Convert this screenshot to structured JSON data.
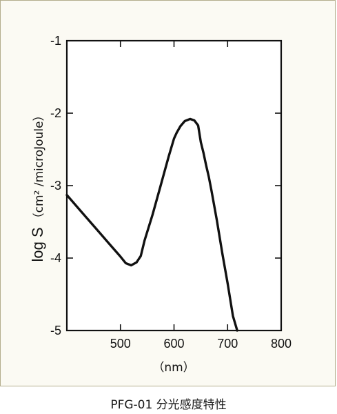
{
  "caption": "PFG-01 分光感度特性",
  "chart_data": {
    "type": "line",
    "title": "",
    "xlabel": "（nm）",
    "ylabel": "log S",
    "ylabel_unit": "（cm² /microJoule）",
    "xlim": [
      400,
      800
    ],
    "ylim": [
      -5,
      -1
    ],
    "xticks": [
      500,
      600,
      700,
      800
    ],
    "xtick_labels": [
      "500",
      "600",
      "700",
      "800"
    ],
    "yticks": [
      -1,
      -2,
      -3,
      -4,
      -5
    ],
    "ytick_labels": [
      "-1",
      "-2",
      "-3",
      "-4",
      "-5"
    ],
    "grid": false,
    "line_color": "#111111",
    "series": [
      {
        "x": [
          400,
          420,
          440,
          460,
          480,
          500,
          510,
          520,
          530,
          538,
          545,
          560,
          575,
          590,
          600,
          605,
          612,
          620,
          630,
          638,
          645,
          650,
          655,
          660,
          665,
          670,
          680,
          690,
          700,
          710,
          718
        ],
        "y": [
          -3.13,
          -3.3,
          -3.47,
          -3.64,
          -3.81,
          -3.98,
          -4.07,
          -4.1,
          -4.06,
          -3.97,
          -3.76,
          -3.4,
          -3.0,
          -2.6,
          -2.35,
          -2.27,
          -2.18,
          -2.11,
          -2.08,
          -2.1,
          -2.17,
          -2.4,
          -2.55,
          -2.72,
          -2.88,
          -3.07,
          -3.48,
          -3.93,
          -4.35,
          -4.8,
          -5.0
        ]
      }
    ]
  }
}
